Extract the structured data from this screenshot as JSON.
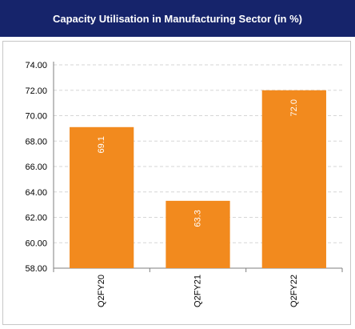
{
  "header": {
    "title": "Capacity Utilisation in Manufacturing Sector (in %)"
  },
  "colors": {
    "header_bg": "#16246b",
    "bar": "#f28a1e",
    "grid": "#d6d6d6",
    "axis": "#7f7f7f"
  },
  "chart_data": {
    "type": "bar",
    "title": "Capacity Utilisation in Manufacturing Sector (in %)",
    "xlabel": "",
    "ylabel": "",
    "categories": [
      "Q2FY20",
      "Q2FY21",
      "Q2FY22"
    ],
    "values": [
      69.1,
      63.3,
      72.0
    ],
    "data_labels": [
      "69.1",
      "63.3",
      "72.0"
    ],
    "yticks": [
      "58.00",
      "60.00",
      "62.00",
      "64.00",
      "66.00",
      "68.00",
      "70.00",
      "72.00",
      "74.00"
    ],
    "ylim": [
      58,
      74
    ],
    "grid": true,
    "legend": "none"
  }
}
